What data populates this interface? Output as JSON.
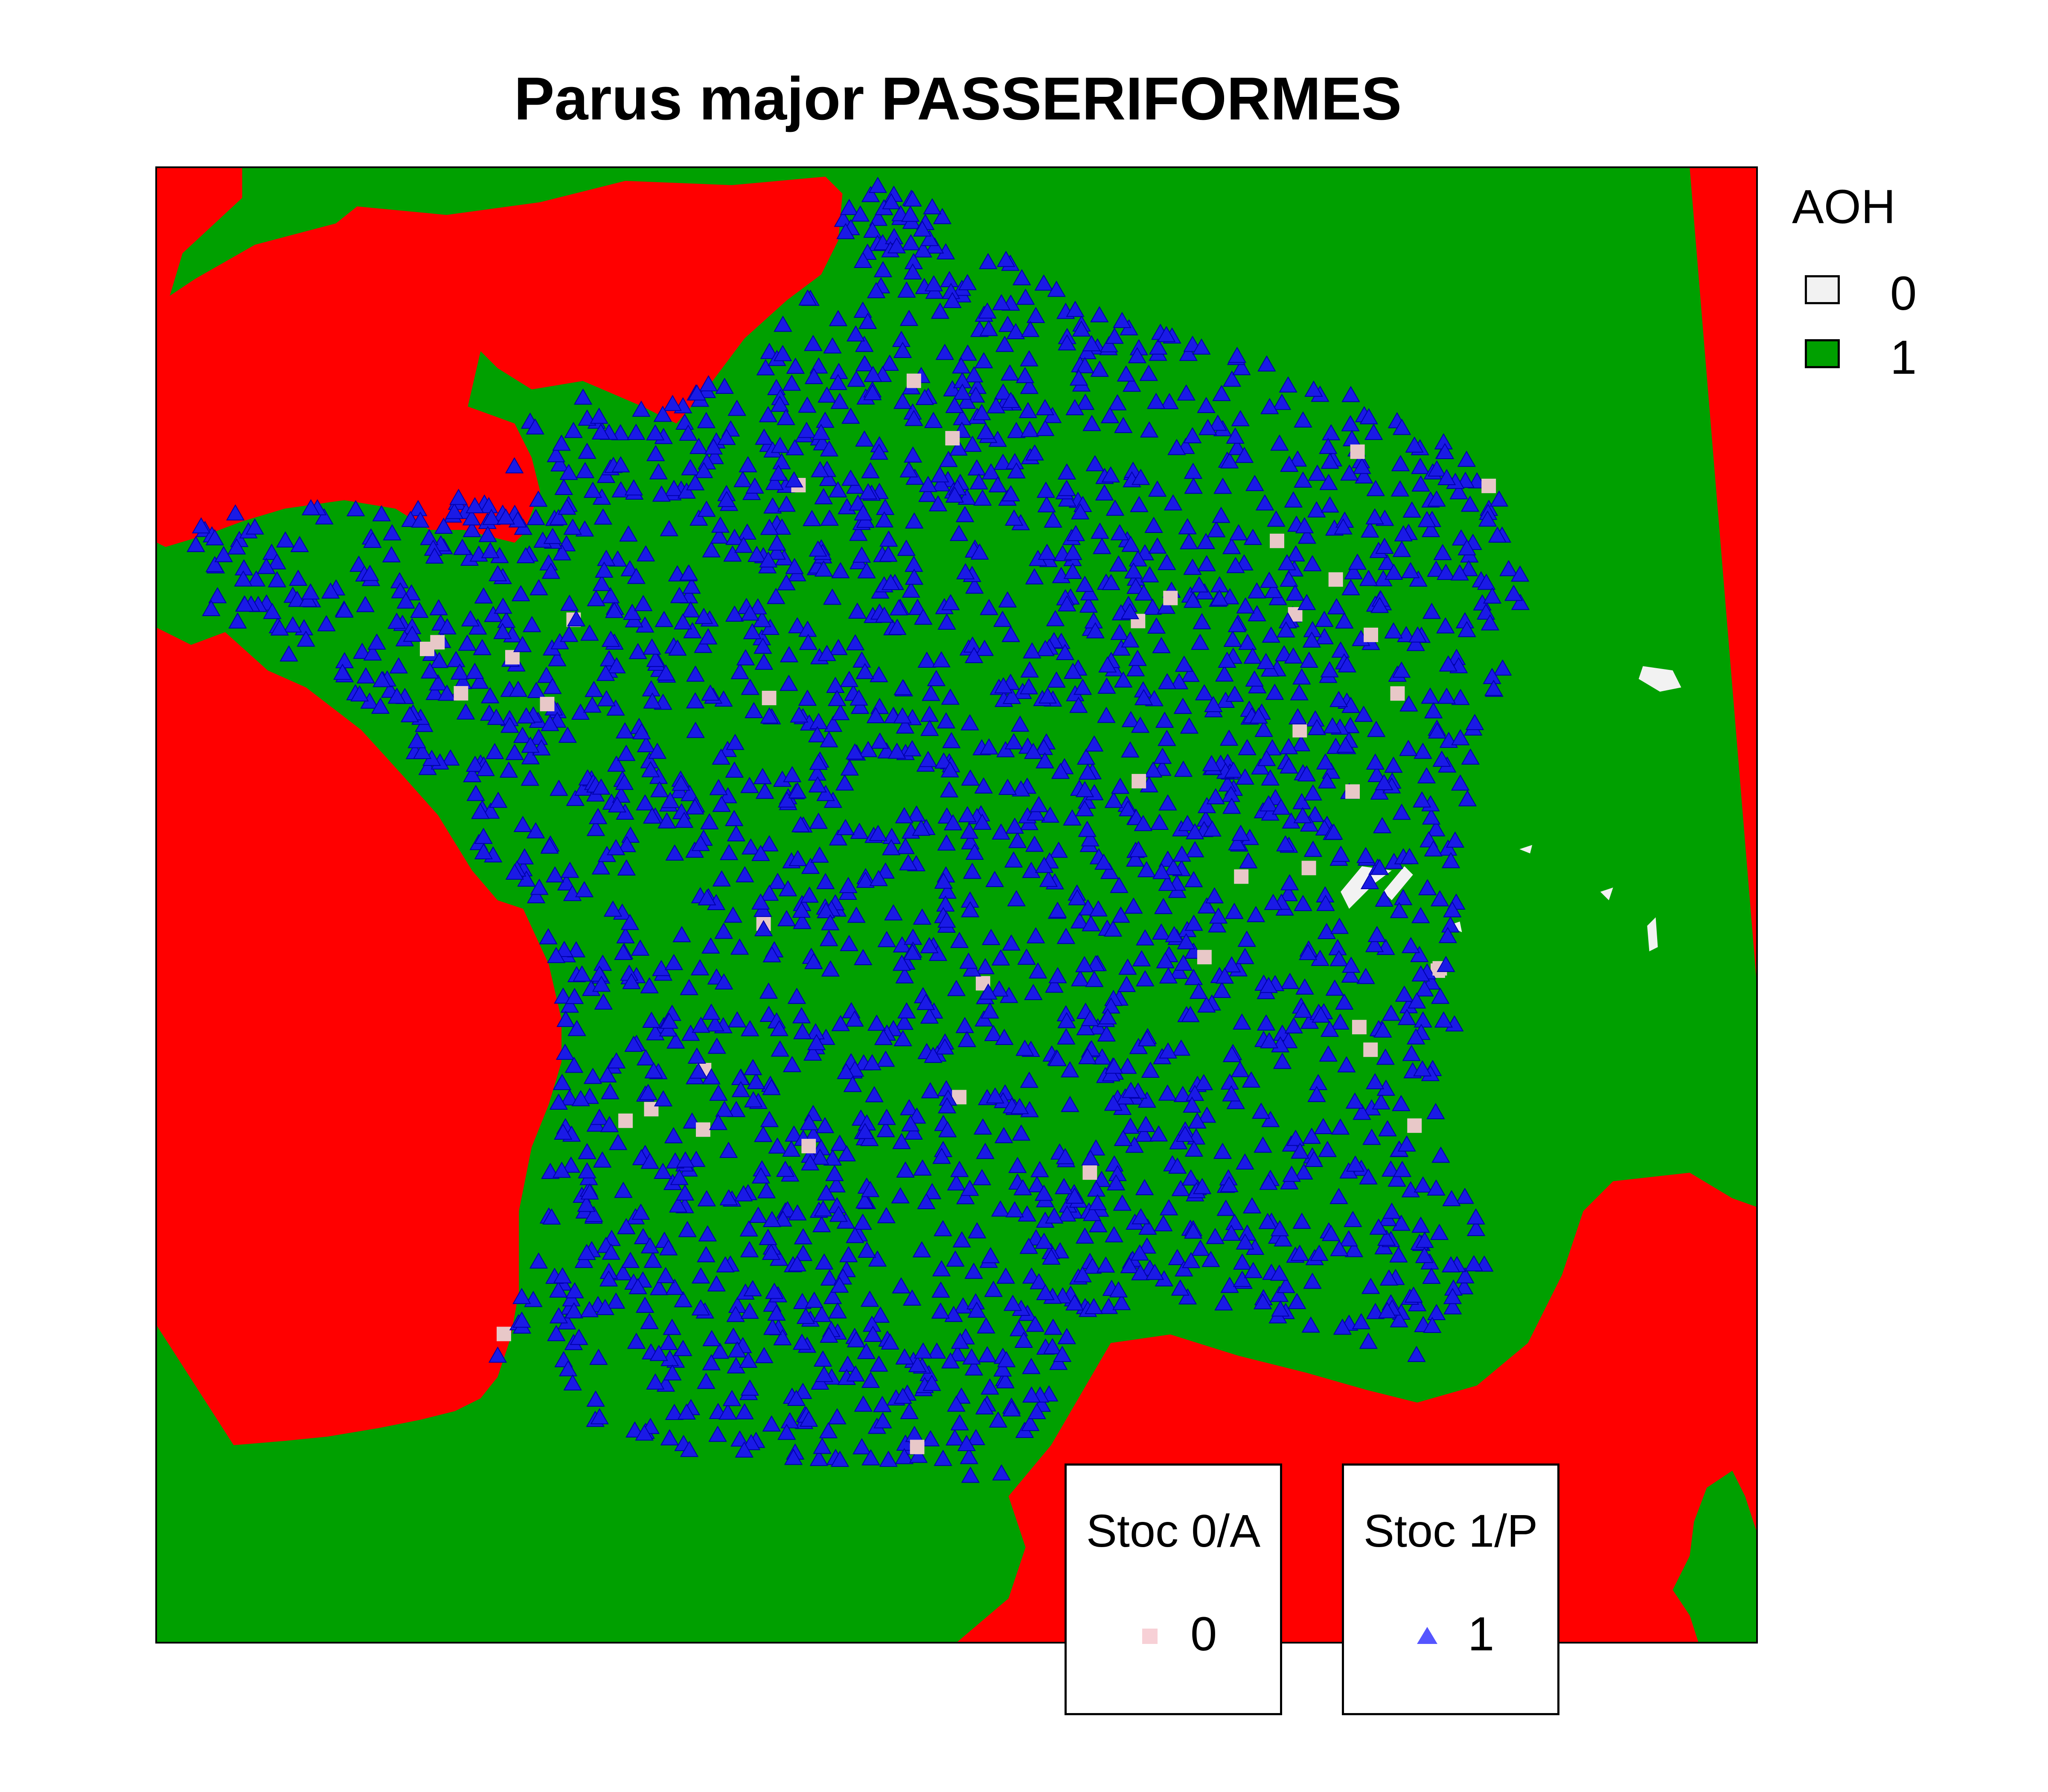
{
  "title": "Parus major PASSERIFORMES",
  "colors": {
    "sea": "#FF0000",
    "habitat": "#00A000",
    "absent_habitat": "#F2F2F2",
    "presence_marker": "#1A1AE6",
    "absence_marker": "#E8C8C8",
    "frame": "#000000"
  },
  "aoh_legend": {
    "title": "AOH",
    "items": [
      {
        "label": "0",
        "color": "#F2F2F2"
      },
      {
        "label": "1",
        "color": "#00A000"
      }
    ]
  },
  "stoc_absence_legend": {
    "title": "Stoc 0/A",
    "label": "0",
    "marker": "square",
    "color": "#F7D0D6"
  },
  "stoc_presence_legend": {
    "title": "Stoc 1/P",
    "label": "1",
    "marker": "triangle",
    "color": "#5555FF"
  }
}
